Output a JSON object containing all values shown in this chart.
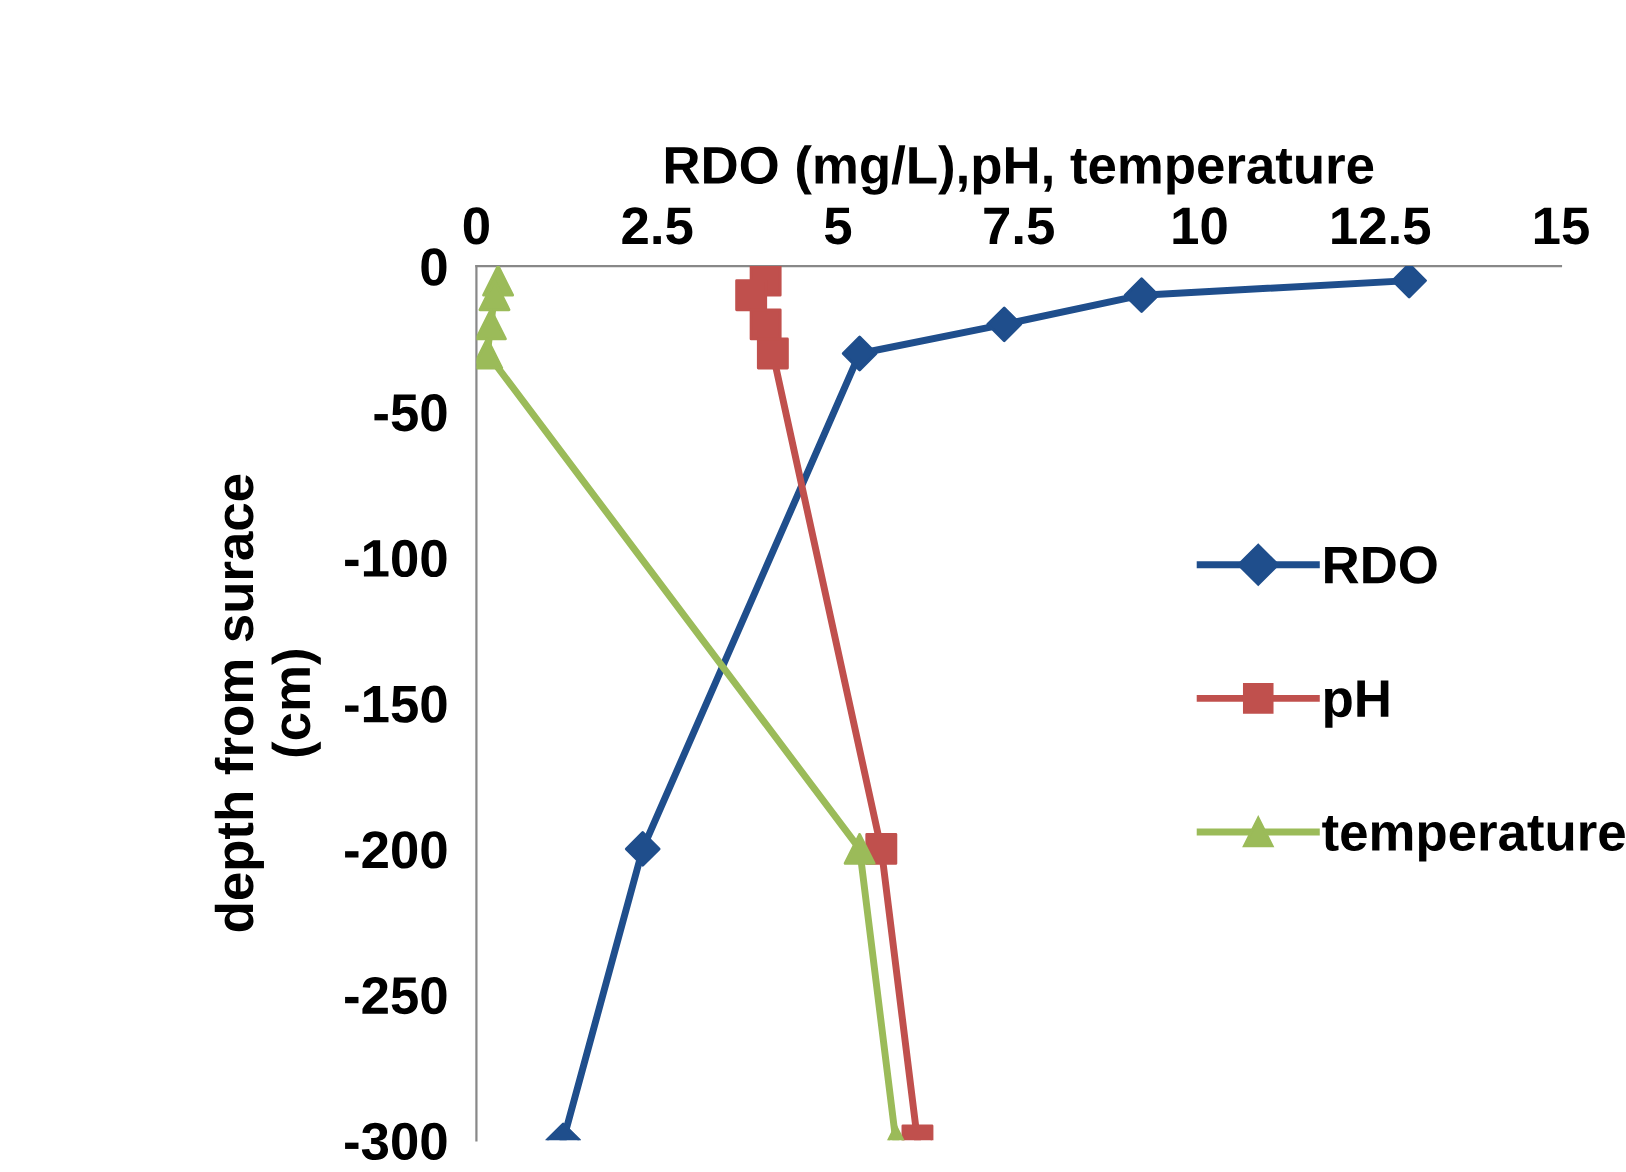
{
  "chart_data": {
    "type": "line",
    "xlabel": "RDO (mg/L),pH, temperature",
    "ylabel": "depth from surace\n(cm)",
    "xlim": [
      0,
      15
    ],
    "xticks": [
      0,
      2.5,
      5,
      7.5,
      10,
      12.5,
      15
    ],
    "ylim": [
      -300,
      0
    ],
    "yticks": [
      0,
      -50,
      -100,
      -150,
      -200,
      -250,
      -300
    ],
    "grid": false,
    "legend": "right",
    "line_style": "solid",
    "series": [
      {
        "name": "RDO",
        "color": "#1f4e8c",
        "marker": "diamond",
        "x": [
          12.9,
          9.2,
          7.3,
          5.3,
          2.3,
          1.2
        ],
        "values": [
          -5,
          -10,
          -20,
          -30,
          -200,
          -300
        ]
      },
      {
        "name": "pH",
        "color": "#c0504d",
        "marker": "square",
        "x": [
          4.0,
          3.8,
          4.0,
          4.1,
          5.6,
          6.1
        ],
        "values": [
          -5,
          -10,
          -20,
          -30,
          -200,
          -300
        ]
      },
      {
        "name": "temperature",
        "color": "#9bbb59",
        "marker": "triangle",
        "x": [
          0.3,
          0.25,
          0.2,
          0.15,
          5.3,
          5.8
        ],
        "values": [
          -5,
          -10,
          -20,
          -30,
          -200,
          -300
        ]
      }
    ]
  }
}
